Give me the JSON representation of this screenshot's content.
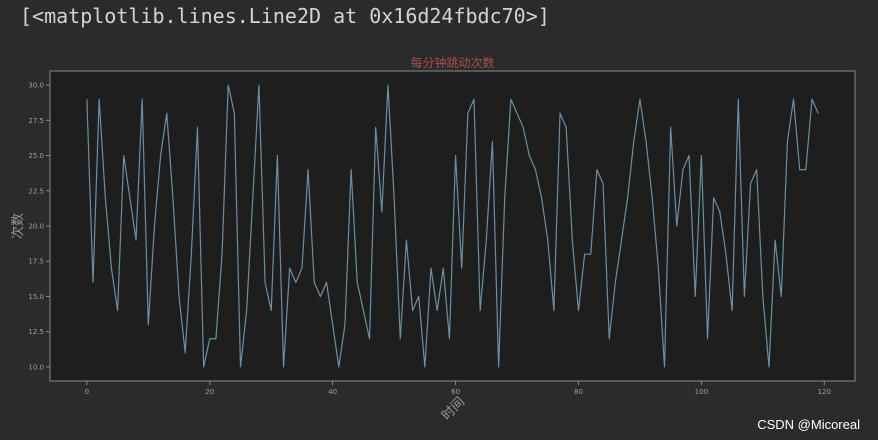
{
  "output": {
    "repr_text": "[<matplotlib.lines.Line2D at 0x16d24fbdc70>]"
  },
  "watermark": "CSDN @Micoreal",
  "chart_data": {
    "type": "line",
    "title": "每分钟跳动次数",
    "xlabel": "时间",
    "ylabel": "次数",
    "xlim": [
      -6,
      125
    ],
    "ylim": [
      9.0,
      31.0
    ],
    "xticks": [
      0,
      20,
      40,
      60,
      80,
      100,
      120
    ],
    "yticks": [
      10.0,
      12.5,
      15.0,
      17.5,
      20.0,
      22.5,
      25.0,
      27.5,
      30.0
    ],
    "grid": false,
    "colors": {
      "line": "#6d8fa3",
      "axes_bg": "#1e1e1e",
      "spine": "#8a8a8a",
      "tick_label": "#a0a0a0",
      "title": "#a85050",
      "axis_label": "#999999"
    },
    "series": [
      {
        "x": [
          0,
          1,
          2,
          3,
          4,
          5,
          6,
          7,
          8,
          9,
          10,
          11,
          12,
          13,
          14,
          15,
          16,
          17,
          18,
          19,
          20,
          21,
          22,
          23,
          24,
          25,
          26,
          27,
          28,
          29,
          30,
          31,
          32,
          33,
          34,
          35,
          36,
          37,
          38,
          39,
          40,
          41,
          42,
          43,
          44,
          45,
          46,
          47,
          48,
          49,
          50,
          51,
          52,
          53,
          54,
          55,
          56,
          57,
          58,
          59,
          60,
          61,
          62,
          63,
          64,
          65,
          66,
          67,
          68,
          69,
          70,
          71,
          72,
          73,
          74,
          75,
          76,
          77,
          78,
          79,
          80,
          81,
          82,
          83,
          84,
          85,
          86,
          87,
          88,
          89,
          90,
          91,
          92,
          93,
          94,
          95,
          96,
          97,
          98,
          99,
          100,
          101,
          102,
          103,
          104,
          105,
          106,
          107,
          108,
          109,
          110,
          111,
          112,
          113,
          114,
          115,
          116,
          117,
          118,
          119
        ],
        "values": [
          29,
          16,
          29,
          22,
          17,
          14,
          25,
          22,
          19,
          29,
          13,
          20,
          25,
          28,
          22,
          15,
          11,
          18,
          27,
          10,
          12,
          12,
          18,
          30,
          28,
          10,
          14,
          22,
          30,
          16,
          14,
          25,
          10,
          17,
          16,
          17,
          24,
          16,
          15,
          16,
          13,
          10,
          13,
          24,
          16,
          14,
          12,
          27,
          21,
          30,
          22,
          12,
          19,
          14,
          15,
          10,
          17,
          14,
          17,
          12,
          25,
          17,
          28,
          29,
          14,
          19,
          26,
          10,
          22,
          29,
          28,
          27,
          25,
          24,
          22,
          19,
          14,
          28,
          27,
          19,
          14,
          18,
          18,
          24,
          23,
          12,
          16,
          19,
          22,
          26,
          29,
          26,
          22,
          17,
          10,
          27,
          20,
          24,
          25,
          15,
          25,
          12,
          22,
          21,
          18,
          14,
          29,
          15,
          23,
          24,
          15,
          10,
          19,
          15,
          26,
          29,
          24,
          24,
          29,
          28
        ]
      }
    ]
  }
}
